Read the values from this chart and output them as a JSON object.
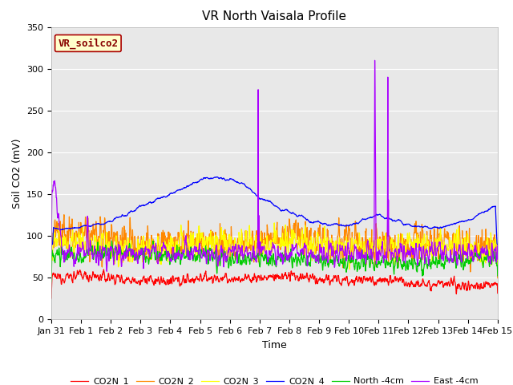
{
  "title": "VR North Vaisala Profile",
  "xlabel": "Time",
  "ylabel": "Soil CO2 (mV)",
  "annotation_text": "VR_soilco2",
  "ylim": [
    0,
    350
  ],
  "xlim_days": [
    0,
    15
  ],
  "x_tick_labels": [
    "Jan 31",
    "Feb 1",
    "Feb 2",
    "Feb 3",
    "Feb 4",
    "Feb 5",
    "Feb 6",
    "Feb 7",
    "Feb 8",
    "Feb 9",
    "Feb 10",
    "Feb 11",
    "Feb 12",
    "Feb 13",
    "Feb 14",
    "Feb 15"
  ],
  "legend_entries": [
    "CO2N_1",
    "CO2N_2",
    "CO2N_3",
    "CO2N_4",
    "North -4cm",
    "East -4cm"
  ],
  "series_colors": [
    "#ff0000",
    "#ff8800",
    "#ffff00",
    "#0000ff",
    "#00cc00",
    "#aa00ff"
  ],
  "background_color": "#ffffff",
  "plot_bg_color": "#e8e8e8",
  "grid_color": "#ffffff",
  "title_fontsize": 11,
  "label_fontsize": 9,
  "tick_fontsize": 8,
  "annotation_fontsize": 9,
  "annotation_box_color": "#ffffcc",
  "annotation_border_color": "#aa0000",
  "figsize": [
    6.4,
    4.8
  ],
  "dpi": 100
}
